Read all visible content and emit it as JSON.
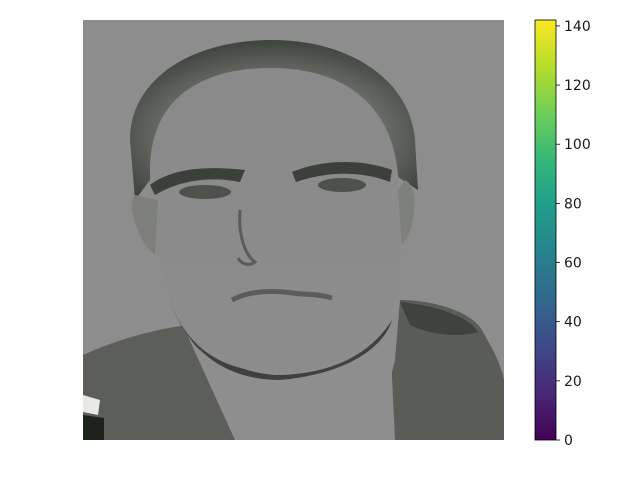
{
  "chart_data": {
    "type": "heatmap",
    "title": "",
    "xlabel": "",
    "ylabel": "",
    "axes_visible": false,
    "image_content": "grayscale face photo",
    "colorbar": {
      "colormap": "viridis",
      "vmin": 0,
      "vmax": 142,
      "ticks": [
        0,
        20,
        40,
        60,
        80,
        100,
        120,
        140
      ],
      "tick_labels": [
        "0",
        "20",
        "40",
        "60",
        "80",
        "100",
        "120",
        "140"
      ],
      "colors": [
        "#440154",
        "#482878",
        "#3e4989",
        "#31688e",
        "#26828e",
        "#1f9e89",
        "#35b779",
        "#6ece58",
        "#b5de2b",
        "#fde725"
      ]
    }
  }
}
